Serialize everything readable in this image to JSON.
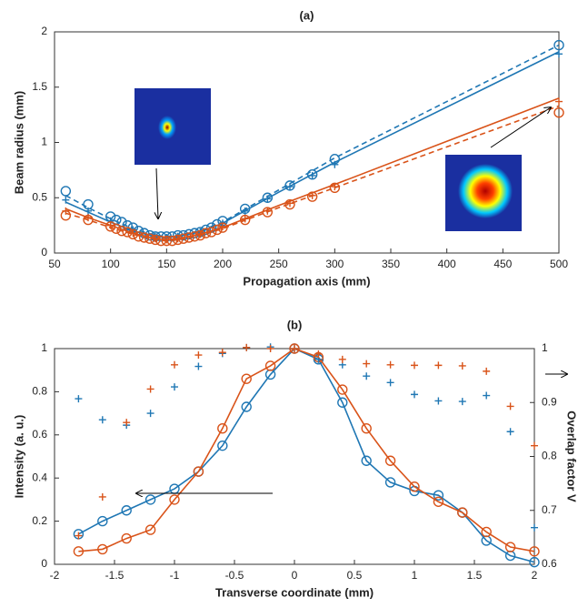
{
  "chart_data": [
    {
      "type": "line",
      "title": "(a)",
      "xlabel": "Propagation axis (mm)",
      "ylabel": "Beam radius (mm)",
      "xlim": [
        50,
        500
      ],
      "xticks": [
        50,
        100,
        150,
        200,
        250,
        300,
        350,
        400,
        450,
        500
      ],
      "ylim": [
        0,
        2
      ],
      "yticks": [
        0,
        0.5,
        1,
        1.5,
        2
      ],
      "series": [
        {
          "color": "#1f77b4",
          "marker": "o",
          "x": [
            60,
            80,
            100,
            105,
            110,
            115,
            120,
            125,
            130,
            135,
            140,
            145,
            150,
            155,
            160,
            165,
            170,
            175,
            180,
            185,
            190,
            195,
            200,
            220,
            240,
            260,
            280,
            300,
            500
          ],
          "values": [
            0.56,
            0.44,
            0.33,
            0.3,
            0.28,
            0.25,
            0.23,
            0.2,
            0.18,
            0.16,
            0.15,
            0.15,
            0.15,
            0.15,
            0.16,
            0.16,
            0.17,
            0.18,
            0.19,
            0.21,
            0.23,
            0.26,
            0.29,
            0.4,
            0.5,
            0.61,
            0.71,
            0.85,
            1.88
          ]
        },
        {
          "color": "#1f77b4",
          "marker": "+",
          "x": [
            60,
            80,
            100,
            120,
            140,
            150,
            160,
            180,
            200,
            220,
            240,
            260,
            280,
            300,
            500
          ],
          "values": [
            0.48,
            0.38,
            0.29,
            0.21,
            0.15,
            0.14,
            0.15,
            0.19,
            0.27,
            0.38,
            0.49,
            0.6,
            0.7,
            0.8,
            1.8
          ]
        },
        {
          "color": "#1f77b4",
          "marker": "-",
          "x": [
            60,
            80,
            100,
            120,
            140,
            150,
            160,
            180,
            200,
            250,
            300,
            400,
            500
          ],
          "values": [
            0.46,
            0.37,
            0.28,
            0.2,
            0.15,
            0.14,
            0.15,
            0.19,
            0.27,
            0.55,
            0.82,
            1.32,
            1.82
          ]
        },
        {
          "color": "#1f77b4",
          "marker": "--",
          "x": [
            60,
            80,
            100,
            120,
            140,
            150,
            160,
            180,
            200,
            250,
            300,
            400,
            500
          ],
          "values": [
            0.52,
            0.41,
            0.31,
            0.22,
            0.16,
            0.15,
            0.16,
            0.2,
            0.28,
            0.57,
            0.86,
            1.37,
            1.88
          ]
        },
        {
          "color": "#d95319",
          "marker": "o",
          "x": [
            60,
            80,
            100,
            105,
            110,
            115,
            120,
            125,
            130,
            135,
            140,
            145,
            150,
            155,
            160,
            165,
            170,
            175,
            180,
            185,
            190,
            195,
            200,
            220,
            240,
            260,
            280,
            300,
            500
          ],
          "values": [
            0.34,
            0.3,
            0.24,
            0.22,
            0.2,
            0.19,
            0.17,
            0.15,
            0.14,
            0.13,
            0.12,
            0.11,
            0.11,
            0.11,
            0.12,
            0.13,
            0.14,
            0.15,
            0.16,
            0.18,
            0.19,
            0.21,
            0.23,
            0.3,
            0.37,
            0.44,
            0.51,
            0.59,
            1.27
          ]
        },
        {
          "color": "#d95319",
          "marker": "+",
          "x": [
            60,
            80,
            100,
            120,
            140,
            150,
            160,
            180,
            200,
            220,
            240,
            260,
            280,
            300,
            500
          ],
          "values": [
            0.38,
            0.32,
            0.25,
            0.18,
            0.13,
            0.12,
            0.13,
            0.17,
            0.24,
            0.31,
            0.38,
            0.45,
            0.52,
            0.6,
            1.37
          ]
        },
        {
          "color": "#d95319",
          "marker": "-",
          "x": [
            60,
            80,
            100,
            120,
            140,
            150,
            160,
            180,
            200,
            250,
            300,
            400,
            500
          ],
          "values": [
            0.4,
            0.32,
            0.25,
            0.18,
            0.13,
            0.12,
            0.13,
            0.17,
            0.23,
            0.43,
            0.62,
            1.01,
            1.4
          ]
        },
        {
          "color": "#d95319",
          "marker": "--",
          "x": [
            60,
            80,
            100,
            120,
            140,
            150,
            160,
            180,
            200,
            250,
            300,
            400,
            500
          ],
          "values": [
            0.36,
            0.3,
            0.23,
            0.17,
            0.12,
            0.11,
            0.12,
            0.16,
            0.22,
            0.41,
            0.59,
            0.96,
            1.33
          ]
        }
      ]
    },
    {
      "type": "line",
      "title": "(b)",
      "xlabel": "Transverse coordinate (mm)",
      "ylabel": "Intensity (a. u.)",
      "y2label": "Overlap factor V",
      "xlim": [
        -2,
        2
      ],
      "xticks": [
        -2,
        -1.5,
        -1,
        -0.5,
        0,
        0.5,
        1,
        1.5,
        2
      ],
      "ylim": [
        0,
        1
      ],
      "yticks": [
        0,
        0.2,
        0.4,
        0.6,
        0.8,
        1
      ],
      "y2lim": [
        0.6,
        1
      ],
      "y2ticks": [
        0.6,
        0.7,
        0.8,
        0.9,
        1
      ],
      "series": [
        {
          "color": "#1f77b4",
          "marker": "o-",
          "x": [
            -1.8,
            -1.6,
            -1.4,
            -1.2,
            -1,
            -0.8,
            -0.6,
            -0.4,
            -0.2,
            0,
            0.2,
            0.4,
            0.6,
            0.8,
            1,
            1.2,
            1.4,
            1.6,
            1.8,
            2
          ],
          "values": [
            0.14,
            0.2,
            0.25,
            0.3,
            0.35,
            0.43,
            0.55,
            0.73,
            0.88,
            1,
            0.95,
            0.75,
            0.48,
            0.38,
            0.34,
            0.32,
            0.24,
            0.11,
            0.04,
            0.01
          ]
        },
        {
          "color": "#d95319",
          "marker": "o-",
          "x": [
            -1.8,
            -1.6,
            -1.4,
            -1.2,
            -1,
            -0.8,
            -0.6,
            -0.4,
            -0.2,
            0,
            0.2,
            0.4,
            0.6,
            0.8,
            1,
            1.2,
            1.4,
            1.6,
            1.8,
            2
          ],
          "values": [
            0.06,
            0.07,
            0.12,
            0.16,
            0.3,
            0.43,
            0.63,
            0.86,
            0.92,
            1,
            0.96,
            0.81,
            0.63,
            0.48,
            0.36,
            0.29,
            0.24,
            0.15,
            0.08,
            0.06
          ]
        },
        {
          "color": "#1f77b4",
          "marker": "+",
          "axis": "y2",
          "x": [
            -1.8,
            -1.6,
            -1.4,
            -1.2,
            -1,
            -0.8,
            -0.6,
            -0.4,
            -0.2,
            0,
            0.2,
            0.4,
            0.6,
            0.8,
            1,
            1.2,
            1.4,
            1.6,
            1.8,
            2
          ],
          "values": [
            0.907,
            0.868,
            0.858,
            0.88,
            0.929,
            0.967,
            0.991,
            1.002,
            1.003,
            1,
            0.98,
            0.97,
            0.949,
            0.937,
            0.915,
            0.903,
            0.902,
            0.913,
            0.846,
            0.668
          ]
        },
        {
          "color": "#d95319",
          "marker": "+",
          "axis": "y2",
          "x": [
            -1.8,
            -1.6,
            -1.4,
            -1.2,
            -1,
            -0.8,
            -0.6,
            -0.4,
            -0.2,
            0,
            0.2,
            0.4,
            0.6,
            0.8,
            1,
            1.2,
            1.4,
            1.6,
            1.8,
            2
          ],
          "values": [
            0.653,
            0.725,
            0.863,
            0.925,
            0.97,
            0.988,
            0.993,
            1.002,
            1,
            1,
            0.99,
            0.98,
            0.972,
            0.97,
            0.969,
            0.969,
            0.968,
            0.958,
            0.893,
            0.82
          ]
        }
      ]
    }
  ]
}
